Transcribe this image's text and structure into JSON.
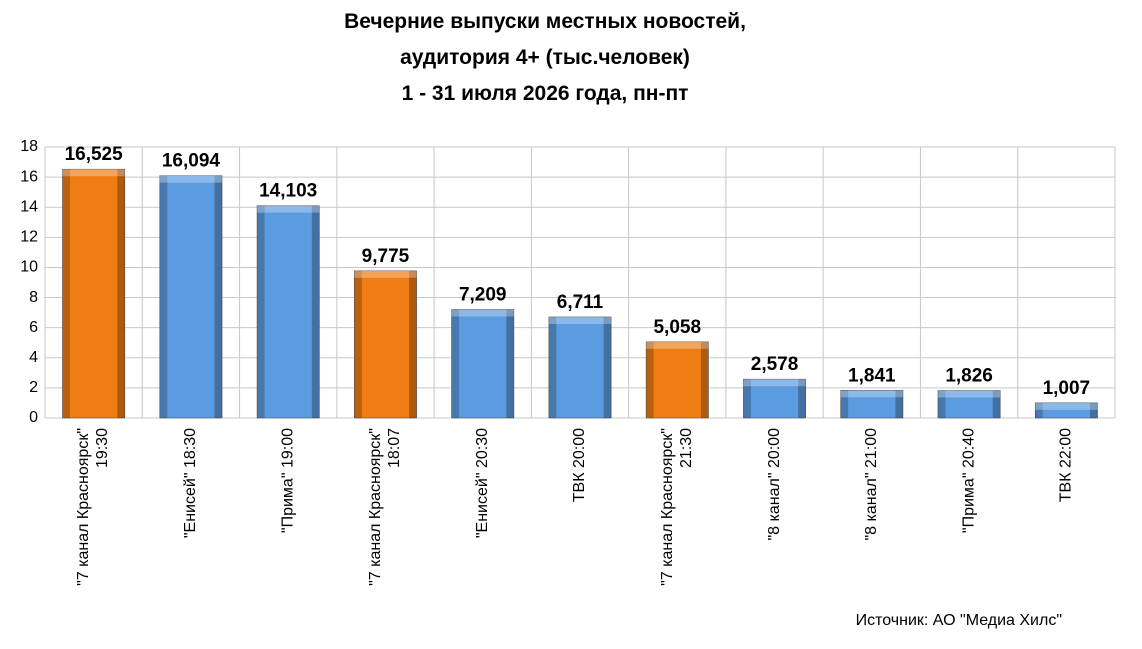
{
  "chart_data": {
    "type": "bar",
    "title": "Вечерние выпуски местных новостей,\nаудитория 4+ (тыс.человек)\n1 - 31 июля 2026 года, пн-пт",
    "categories": [
      "\"7 канал Красноярск\"\n19:30",
      "\"Енисей\" 18:30",
      "\"Прима\" 19:00",
      "\"7 канал Красноярск\"\n18:07",
      "\"Енисей\" 20:30",
      "ТВК 20:00",
      "\"7 канал Красноярск\"\n21:30",
      "\"8 канал\" 20:00",
      "\"8 канал\" 21:00",
      "\"Прима\" 20:40",
      "ТВК 22:00"
    ],
    "values": [
      16.525,
      16.094,
      14.103,
      9.775,
      7.209,
      6.711,
      5.058,
      2.578,
      1.841,
      1.826,
      1.007
    ],
    "value_labels": [
      "16,525",
      "16,094",
      "14,103",
      "9,775",
      "7,209",
      "6,711",
      "5,058",
      "2,578",
      "1,841",
      "1,826",
      "1,007"
    ],
    "colors": [
      "#f07c14",
      "#5b9be0",
      "#5b9be0",
      "#f07c14",
      "#5b9be0",
      "#5b9be0",
      "#f07c14",
      "#5b9be0",
      "#5b9be0",
      "#5b9be0",
      "#5b9be0"
    ],
    "ylim": [
      0,
      18
    ],
    "yticks": [
      0,
      2,
      4,
      6,
      8,
      10,
      12,
      14,
      16,
      18
    ],
    "grid": true,
    "source": "Источник: АО \"Медиа Хилс\""
  }
}
